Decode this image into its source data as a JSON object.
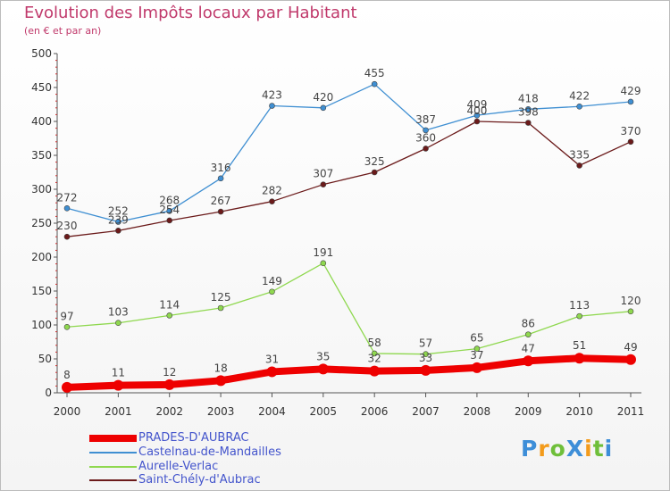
{
  "title": "Evolution des Impôts locaux par Habitant",
  "subtitle": "(en € et par an)",
  "logo": "ProXiti",
  "chart_data": {
    "type": "line",
    "title": "Evolution des Impôts locaux par Habitant",
    "subtitle": "(en € et par an)",
    "xlabel": "",
    "ylabel": "",
    "x": [
      "2000",
      "2001",
      "2002",
      "2003",
      "2004",
      "2005",
      "2006",
      "2007",
      "2008",
      "2009",
      "2010",
      "2011"
    ],
    "ylim": [
      0,
      500
    ],
    "yticks": [
      0,
      50,
      100,
      150,
      200,
      250,
      300,
      350,
      400,
      450,
      500
    ],
    "grid": false,
    "legend_position": "bottom-left",
    "series": [
      {
        "name": "PRADES-D'AUBRAC",
        "color": "#ee0000",
        "values": [
          8,
          11,
          12,
          18,
          31,
          35,
          32,
          33,
          37,
          47,
          51,
          49
        ]
      },
      {
        "name": "Castelnau-de-Mandailles",
        "color": "#3f8fd2",
        "values": [
          272,
          252,
          268,
          316,
          423,
          420,
          455,
          387,
          409,
          418,
          422,
          429
        ]
      },
      {
        "name": "Aurelle-Verlac",
        "color": "#8fd84f",
        "values": [
          97,
          103,
          114,
          125,
          149,
          191,
          58,
          57,
          65,
          86,
          113,
          120
        ]
      },
      {
        "name": "Saint-Chély-d'Aubrac",
        "color": "#6b1a1a",
        "values": [
          230,
          239,
          254,
          267,
          282,
          307,
          325,
          360,
          400,
          398,
          335,
          370
        ]
      }
    ]
  }
}
